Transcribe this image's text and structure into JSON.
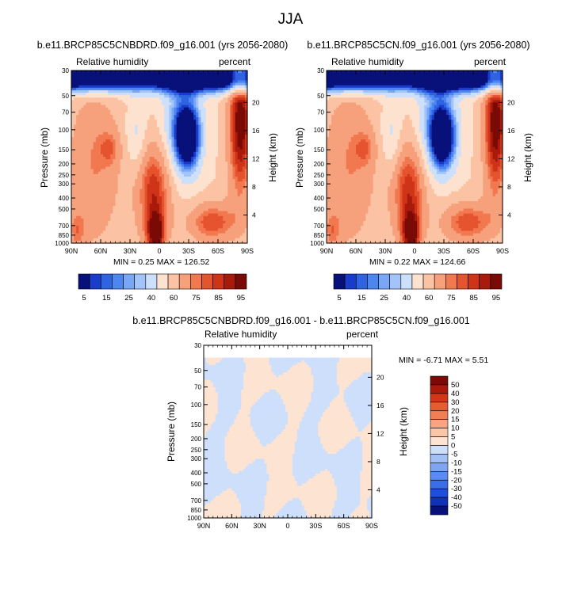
{
  "figure_title": "JJA",
  "colors": {
    "abs_scale": [
      "#08107a",
      "#1a3ccc",
      "#2f63e2",
      "#4d86f0",
      "#7aa7f5",
      "#a3c4f8",
      "#cde0fb",
      "#fde2d0",
      "#fbc3a3",
      "#f7a07c",
      "#f1784f",
      "#e5532f",
      "#cf3418",
      "#a91a0c",
      "#7a0a05"
    ],
    "diff_scale": [
      "#08107a",
      "#1131b8",
      "#1e4fd8",
      "#3a6de8",
      "#5b8af0",
      "#7ea5f3",
      "#a3c0f6",
      "#cddffb",
      "#fde3d1",
      "#fbc6a7",
      "#f7a47f",
      "#f17e55",
      "#e85a33",
      "#d23718",
      "#a91a0c",
      "#7a0a05"
    ]
  },
  "panels": {
    "left": {
      "title": "b.e11.BRCP85C5CNBDRD.f09_g16.001 (yrs 2056-2080)",
      "left_label": "Relative humidity",
      "right_label": "percent",
      "stats": "MIN =   0.25  MAX = 126.52"
    },
    "right": {
      "title": "b.e11.BRCP85C5CN.f09_g16.001 (yrs 2056-2080)",
      "left_label": "Relative humidity",
      "right_label": "percent",
      "stats": "MIN =   0.22  MAX = 124.66"
    },
    "diff": {
      "title": "b.e11.BRCP85C5CNBDRD.f09_g16.001 - b.e11.BRCP85C5CN.f09_g16.001",
      "left_label": "Relative humidity",
      "right_label": "percent",
      "stats": "MIN =  -6.71  MAX =   5.51"
    }
  },
  "axes": {
    "y_label": "Pressure (mb)",
    "y2_label": "Height (km)"
  },
  "chart_data": [
    {
      "type": "heatmap",
      "title": "b.e11.BRCP85C5CNBDRD.f09_g16.001 (yrs 2056-2080)",
      "subtitle_left": "Relative humidity",
      "subtitle_right": "percent",
      "xlabel": "",
      "ylabel": "Pressure (mb)",
      "y2label": "Height (km)",
      "x_ticks": [
        "90N",
        "60N",
        "30N",
        "0",
        "30S",
        "60S",
        "90S"
      ],
      "y_ticks": [
        30,
        50,
        70,
        100,
        150,
        200,
        250,
        300,
        400,
        500,
        700,
        850,
        1000
      ],
      "y2_ticks": [
        20,
        16,
        12,
        8,
        4
      ],
      "x_range": [
        "90N",
        "90S"
      ],
      "y_range": [
        1000,
        30
      ],
      "colorbar_labels": [
        "5",
        "15",
        "25",
        "40",
        "60",
        "75",
        "85",
        "95"
      ],
      "min": 0.25,
      "max": 126.52
    },
    {
      "type": "heatmap",
      "title": "b.e11.BRCP85C5CN.f09_g16.001 (yrs 2056-2080)",
      "subtitle_left": "Relative humidity",
      "subtitle_right": "percent",
      "xlabel": "",
      "ylabel": "Pressure (mb)",
      "y2label": "Height (km)",
      "x_ticks": [
        "90N",
        "60N",
        "30N",
        "0",
        "30S",
        "60S",
        "90S"
      ],
      "y_ticks": [
        30,
        50,
        70,
        100,
        150,
        200,
        250,
        300,
        400,
        500,
        700,
        850,
        1000
      ],
      "y2_ticks": [
        20,
        16,
        12,
        8,
        4
      ],
      "x_range": [
        "90N",
        "90S"
      ],
      "y_range": [
        1000,
        30
      ],
      "colorbar_labels": [
        "5",
        "15",
        "25",
        "40",
        "60",
        "75",
        "85",
        "95"
      ],
      "min": 0.22,
      "max": 124.66
    },
    {
      "type": "heatmap",
      "title": "b.e11.BRCP85C5CNBDRD.f09_g16.001 - b.e11.BRCP85C5CN.f09_g16.001",
      "subtitle_left": "Relative humidity",
      "subtitle_right": "percent",
      "xlabel": "",
      "ylabel": "Pressure (mb)",
      "y2label": "Height (km)",
      "x_ticks": [
        "90N",
        "60N",
        "30N",
        "0",
        "30S",
        "60S",
        "90S"
      ],
      "y_ticks": [
        30,
        50,
        70,
        100,
        150,
        200,
        250,
        300,
        400,
        500,
        700,
        850,
        1000
      ],
      "y2_ticks": [
        20,
        16,
        12,
        8,
        4
      ],
      "x_range": [
        "90N",
        "90S"
      ],
      "y_range": [
        1000,
        30
      ],
      "colorbar_labels": [
        "50",
        "40",
        "30",
        "20",
        "15",
        "10",
        "5",
        "0",
        "-5",
        "-10",
        "-15",
        "-20",
        "-30",
        "-40",
        "-50"
      ],
      "min": -6.71,
      "max": 5.51
    }
  ]
}
